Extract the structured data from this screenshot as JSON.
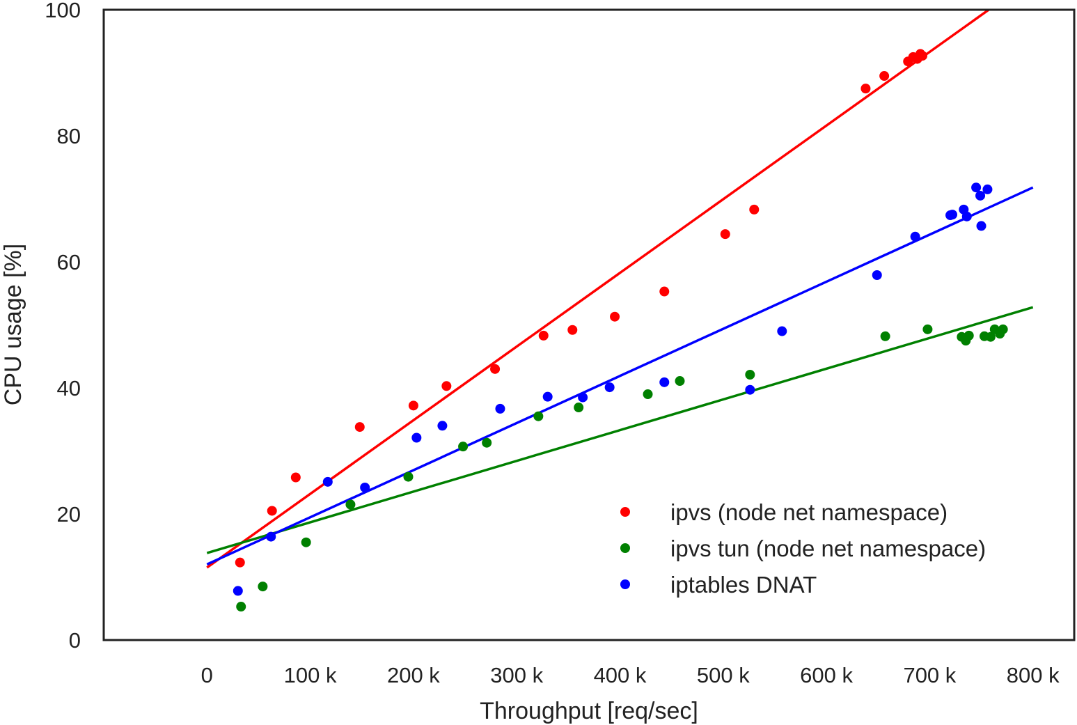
{
  "chart_data": {
    "type": "scatter",
    "title": "",
    "xlabel": "Throughput [req/sec]",
    "ylabel": "CPU usage [%]",
    "xlim": [
      -100000,
      840000
    ],
    "ylim": [
      0,
      100
    ],
    "x_ticks": [
      0,
      100000,
      200000,
      300000,
      400000,
      500000,
      600000,
      700000,
      800000
    ],
    "x_tick_labels": [
      "0",
      "100 k",
      "200 k",
      "300 k",
      "400 k",
      "500 k",
      "600 k",
      "700 k",
      "800 k"
    ],
    "y_ticks": [
      0,
      20,
      40,
      60,
      80,
      100
    ],
    "y_tick_labels": [
      "0",
      "20",
      "40",
      "60",
      "80",
      "100"
    ],
    "grid": false,
    "legend_position": "bottom-right",
    "series": [
      {
        "name": "ipvs (node net namespace)",
        "color": "#ff0000",
        "points": [
          [
            32000,
            12.3
          ],
          [
            63000,
            20.5
          ],
          [
            86000,
            25.8
          ],
          [
            148000,
            33.8
          ],
          [
            200000,
            37.2
          ],
          [
            232000,
            40.3
          ],
          [
            279000,
            43.0
          ],
          [
            326000,
            48.3
          ],
          [
            354000,
            49.2
          ],
          [
            395000,
            51.3
          ],
          [
            443000,
            55.3
          ],
          [
            502000,
            64.4
          ],
          [
            530000,
            68.3
          ],
          [
            638000,
            87.5
          ],
          [
            656000,
            89.5
          ],
          [
            679000,
            91.8
          ],
          [
            684000,
            92.5
          ],
          [
            688000,
            92.2
          ],
          [
            691000,
            93.0
          ],
          [
            693000,
            92.7
          ]
        ],
        "fit": [
          [
            0,
            11.5
          ],
          [
            800000,
            105.0
          ]
        ]
      },
      {
        "name": "ipvs tun (node net namespace)",
        "color": "#008000",
        "points": [
          [
            33000,
            5.3
          ],
          [
            54000,
            8.5
          ],
          [
            96000,
            15.5
          ],
          [
            139000,
            21.5
          ],
          [
            195000,
            25.9
          ],
          [
            248000,
            30.7
          ],
          [
            271000,
            31.3
          ],
          [
            321000,
            35.5
          ],
          [
            360000,
            36.9
          ],
          [
            427000,
            39.0
          ],
          [
            458000,
            41.1
          ],
          [
            526000,
            42.1
          ],
          [
            657000,
            48.2
          ],
          [
            698000,
            49.3
          ],
          [
            731000,
            48.1
          ],
          [
            735000,
            47.5
          ],
          [
            738000,
            48.3
          ],
          [
            753000,
            48.2
          ],
          [
            759000,
            48.1
          ],
          [
            763000,
            49.3
          ],
          [
            768000,
            48.6
          ],
          [
            771000,
            49.3
          ]
        ],
        "fit": [
          [
            0,
            13.8
          ],
          [
            800000,
            52.8
          ]
        ]
      },
      {
        "name": "iptables DNAT",
        "color": "#0000ff",
        "points": [
          [
            30000,
            7.8
          ],
          [
            62000,
            16.4
          ],
          [
            117000,
            25.1
          ],
          [
            153000,
            24.2
          ],
          [
            203000,
            32.1
          ],
          [
            228000,
            34.0
          ],
          [
            284000,
            36.7
          ],
          [
            330000,
            38.6
          ],
          [
            364000,
            38.5
          ],
          [
            390000,
            40.1
          ],
          [
            443000,
            40.9
          ],
          [
            526000,
            39.7
          ],
          [
            557000,
            49.0
          ],
          [
            649000,
            57.9
          ],
          [
            686000,
            64.0
          ],
          [
            720000,
            67.4
          ],
          [
            722000,
            67.5
          ],
          [
            733000,
            68.3
          ],
          [
            736000,
            67.2
          ],
          [
            745000,
            71.8
          ],
          [
            749000,
            70.5
          ],
          [
            750000,
            65.7
          ],
          [
            756000,
            71.5
          ]
        ],
        "fit": [
          [
            0,
            12.0
          ],
          [
            800000,
            71.8
          ]
        ]
      }
    ]
  }
}
